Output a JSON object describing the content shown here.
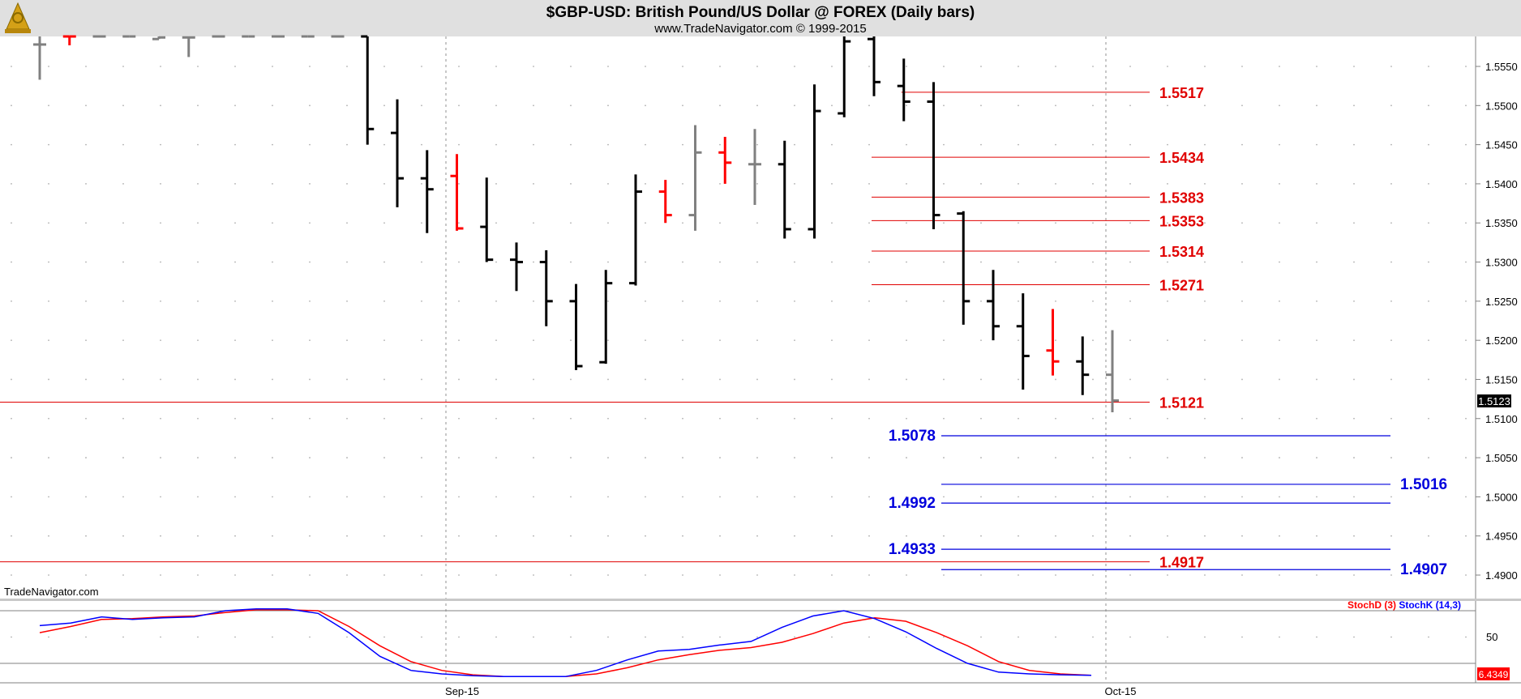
{
  "header": {
    "title": "$GBP-USD:  British Pound/US Dollar @ FOREX  (Daily bars)",
    "subtitle": "www.TradeNavigator.com © 1999-2015",
    "logo_icon": "sextant-logo-icon",
    "watermark": "TradeNavigator.com"
  },
  "colors": {
    "background": "#ffffff",
    "header_bg": "#e0e0e0",
    "bar_black": "#000000",
    "bar_red": "#ff0000",
    "bar_gray": "#808080",
    "level_red": "#e00000",
    "level_blue": "#0000dd",
    "stoch_d": "#ff0000",
    "stoch_k": "#0000ff",
    "grid_dot": "#b0b0b0"
  },
  "chart_data": [
    {
      "type": "bar",
      "subtype": "ohlc",
      "title": "$GBP-USD:  British Pound/US Dollar @ FOREX  (Daily bars)",
      "ylim": [
        1.4872,
        1.559
      ],
      "y_ticks": [
        "1.5550",
        "1.5500",
        "1.5450",
        "1.5400",
        "1.5350",
        "1.5300",
        "1.5250",
        "1.5200",
        "1.5150",
        "1.5100",
        "1.5050",
        "1.5000",
        "1.4950",
        "1.4900"
      ],
      "x_ticks": [
        {
          "label": "Sep-15",
          "bar": 15
        },
        {
          "label": "Oct-15",
          "bar": 37
        }
      ],
      "last_price": "1.5123",
      "bars": [
        {
          "c": "#808080",
          "open": 1.5578,
          "high": 1.559,
          "low": 1.5533,
          "close": 1.5578
        },
        {
          "c": "#ff0000",
          "open": 1.559,
          "high": 1.559,
          "low": 1.5577,
          "close": 1.559
        },
        {
          "c": "#808080",
          "open": 1.559,
          "high": 1.559,
          "low": 1.559,
          "close": 1.559
        },
        {
          "c": "#808080",
          "open": 1.559,
          "high": 1.559,
          "low": 1.559,
          "close": 1.559
        },
        {
          "c": "#808080",
          "open": 1.5585,
          "high": 1.559,
          "low": 1.5585,
          "close": 1.5587
        },
        {
          "c": "#808080",
          "open": 1.5587,
          "high": 1.559,
          "low": 1.5562,
          "close": 1.5587
        },
        {
          "c": "#808080",
          "open": 1.559,
          "high": 1.559,
          "low": 1.559,
          "close": 1.559
        },
        {
          "c": "#808080",
          "open": 1.559,
          "high": 1.559,
          "low": 1.559,
          "close": 1.559
        },
        {
          "c": "#808080",
          "open": 1.559,
          "high": 1.559,
          "low": 1.559,
          "close": 1.559
        },
        {
          "c": "#808080",
          "open": 1.559,
          "high": 1.559,
          "low": 1.559,
          "close": 1.559
        },
        {
          "c": "#808080",
          "open": 1.559,
          "high": 1.559,
          "low": 1.559,
          "close": 1.559
        },
        {
          "c": "#000000",
          "open": 1.559,
          "high": 1.559,
          "low": 1.545,
          "close": 1.547
        },
        {
          "c": "#000000",
          "open": 1.5465,
          "high": 1.5508,
          "low": 1.537,
          "close": 1.5407
        },
        {
          "c": "#000000",
          "open": 1.5407,
          "high": 1.5443,
          "low": 1.5337,
          "close": 1.5393
        },
        {
          "c": "#ff0000",
          "open": 1.541,
          "high": 1.5438,
          "low": 1.534,
          "close": 1.5343
        },
        {
          "c": "#000000",
          "open": 1.5345,
          "high": 1.5408,
          "low": 1.53,
          "close": 1.5303
        },
        {
          "c": "#000000",
          "open": 1.5303,
          "high": 1.5325,
          "low": 1.5263,
          "close": 1.53
        },
        {
          "c": "#000000",
          "open": 1.53,
          "high": 1.5315,
          "low": 1.5218,
          "close": 1.525
        },
        {
          "c": "#000000",
          "open": 1.525,
          "high": 1.5272,
          "low": 1.5162,
          "close": 1.5167
        },
        {
          "c": "#000000",
          "open": 1.5172,
          "high": 1.529,
          "low": 1.517,
          "close": 1.5273
        },
        {
          "c": "#000000",
          "open": 1.5273,
          "high": 1.5412,
          "low": 1.527,
          "close": 1.539
        },
        {
          "c": "#ff0000",
          "open": 1.539,
          "high": 1.5405,
          "low": 1.535,
          "close": 1.536
        },
        {
          "c": "#808080",
          "open": 1.536,
          "high": 1.5475,
          "low": 1.534,
          "close": 1.544
        },
        {
          "c": "#ff0000",
          "open": 1.544,
          "high": 1.546,
          "low": 1.54,
          "close": 1.5427
        },
        {
          "c": "#808080",
          "open": 1.5425,
          "high": 1.547,
          "low": 1.5373,
          "close": 1.5425
        },
        {
          "c": "#000000",
          "open": 1.5425,
          "high": 1.5455,
          "low": 1.533,
          "close": 1.5342
        },
        {
          "c": "#000000",
          "open": 1.5342,
          "high": 1.5527,
          "low": 1.533,
          "close": 1.5493
        },
        {
          "c": "#000000",
          "open": 1.549,
          "high": 1.559,
          "low": 1.5485,
          "close": 1.5582
        },
        {
          "c": "#000000",
          "open": 1.5585,
          "high": 1.559,
          "low": 1.5512,
          "close": 1.553
        },
        {
          "c": "#000000",
          "open": 1.5525,
          "high": 1.556,
          "low": 1.548,
          "close": 1.5505
        },
        {
          "c": "#000000",
          "open": 1.5505,
          "high": 1.553,
          "low": 1.5342,
          "close": 1.536
        },
        {
          "c": "#000000",
          "open": 1.5362,
          "high": 1.5365,
          "low": 1.522,
          "close": 1.525
        },
        {
          "c": "#000000",
          "open": 1.525,
          "high": 1.529,
          "low": 1.52,
          "close": 1.5218
        },
        {
          "c": "#000000",
          "open": 1.5218,
          "high": 1.526,
          "low": 1.5137,
          "close": 1.518
        },
        {
          "c": "#ff0000",
          "open": 1.5187,
          "high": 1.524,
          "low": 1.5155,
          "close": 1.5173
        },
        {
          "c": "#000000",
          "open": 1.5173,
          "high": 1.5205,
          "low": 1.513,
          "close": 1.5156
        },
        {
          "c": "#808080",
          "open": 1.5156,
          "high": 1.5213,
          "low": 1.5108,
          "close": 1.5123
        }
      ],
      "red_levels": [
        {
          "value": 1.5517,
          "label": "1.5517",
          "from_bar": 29
        },
        {
          "value": 1.5434,
          "label": "1.5434",
          "from_bar": 28
        },
        {
          "value": 1.5383,
          "label": "1.5383",
          "from_bar": 28
        },
        {
          "value": 1.5353,
          "label": "1.5353",
          "from_bar": 28
        },
        {
          "value": 1.5314,
          "label": "1.5314",
          "from_bar": 28
        },
        {
          "value": 1.5271,
          "label": "1.5271",
          "from_bar": 28
        },
        {
          "value": 1.5121,
          "label": "1.5121",
          "from_bar": -1
        },
        {
          "value": 1.4917,
          "label": "1.4917",
          "from_bar": -1
        }
      ],
      "blue_levels": [
        {
          "value": 1.5078,
          "label": "1.5078",
          "label_side": "left"
        },
        {
          "value": 1.5016,
          "label": "1.5016",
          "label_side": "right"
        },
        {
          "value": 1.4992,
          "label": "1.4992",
          "label_side": "left"
        },
        {
          "value": 1.4933,
          "label": "1.4933",
          "label_side": "left"
        },
        {
          "value": 1.4907,
          "label": "1.4907",
          "label_side": "right"
        }
      ]
    },
    {
      "type": "line",
      "title": "",
      "ylim": [
        0,
        100
      ],
      "y_ticks": [
        "50"
      ],
      "ref_lines": [
        80,
        20
      ],
      "last_value": "6.4349",
      "series": [
        {
          "name": "StochD (3)",
          "color": "#ff0000",
          "values": [
            55,
            62,
            70,
            71,
            73,
            74,
            78,
            81,
            81,
            80,
            62,
            40,
            22,
            12,
            7,
            5,
            5,
            5,
            8,
            15,
            24,
            30,
            35,
            38,
            44,
            54,
            66,
            72,
            68,
            55,
            40,
            22,
            12,
            8,
            6.4349
          ]
        },
        {
          "name": "StochK (14,3)",
          "color": "#0000ff",
          "values": [
            63,
            66,
            73,
            70,
            72,
            73,
            80,
            82,
            82,
            77,
            55,
            28,
            12,
            8,
            6,
            5,
            5,
            5,
            12,
            24,
            34,
            36,
            41,
            45,
            61,
            74,
            80,
            71,
            56,
            37,
            20,
            10,
            8,
            7,
            6.4349
          ]
        }
      ]
    }
  ]
}
